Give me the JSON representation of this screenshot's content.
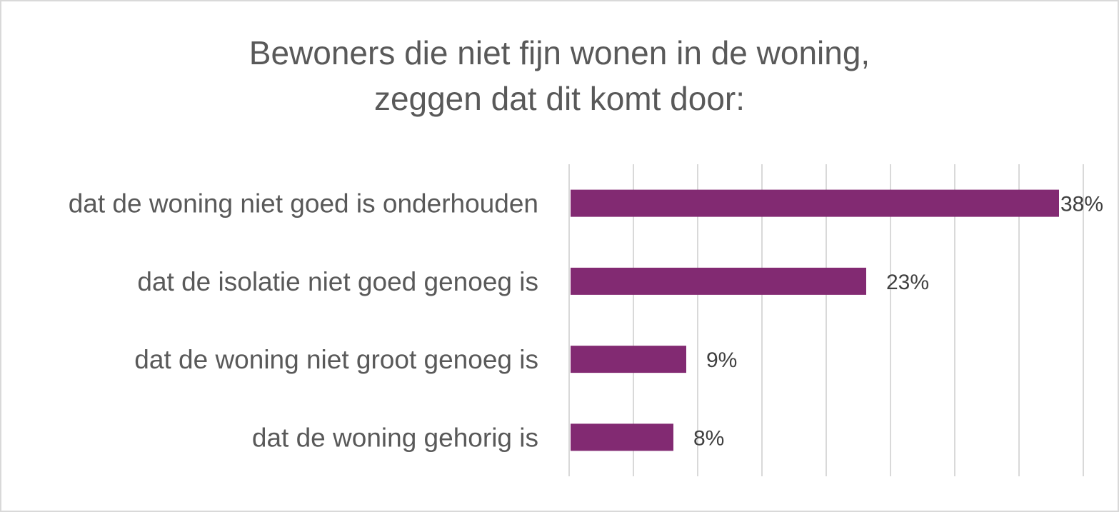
{
  "chart_data": {
    "type": "bar",
    "orientation": "horizontal",
    "title_lines": [
      "Bewoners die niet fijn wonen in de woning,",
      "zeggen dat dit komt door:"
    ],
    "categories": [
      "dat de woning niet goed is onderhouden",
      "dat de isolatie niet goed genoeg is",
      "dat de woning niet groot genoeg is",
      "dat de woning gehorig is"
    ],
    "values": [
      38,
      23,
      9,
      8
    ],
    "value_labels": [
      "38%",
      "23%",
      "9%",
      "8%"
    ],
    "xlim": [
      0,
      40
    ],
    "grid_step": 5,
    "grid": true,
    "legend": "none",
    "bar_color": "#822A72"
  }
}
